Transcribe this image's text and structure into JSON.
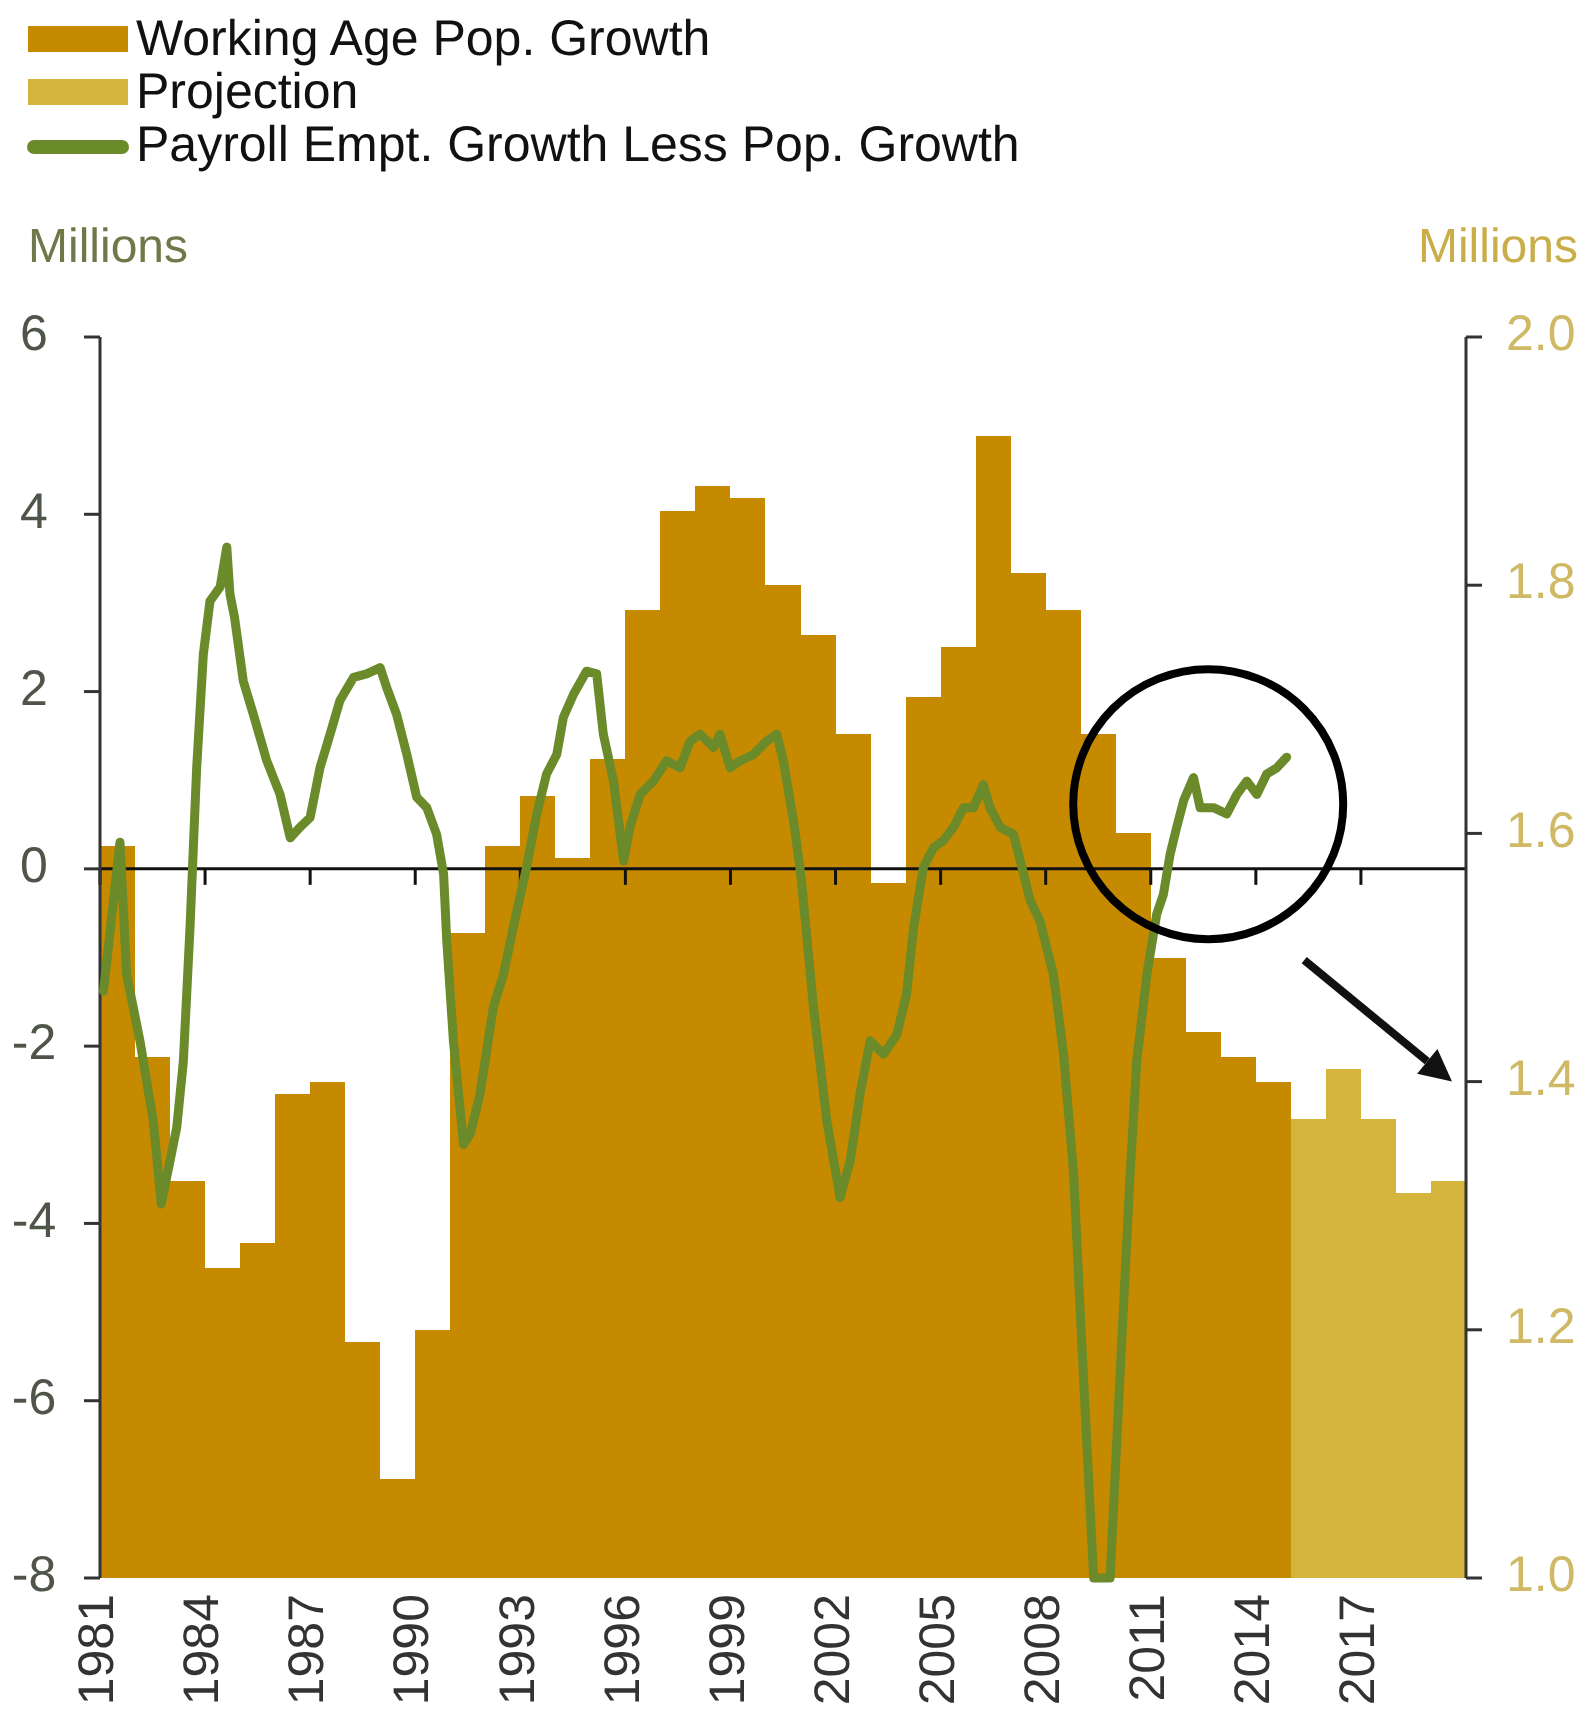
{
  "chart_data": {
    "type": "bar",
    "ylabel": "Millions",
    "y2label": "Millions",
    "legend": "top left",
    "xlim": [
      1981,
      2020
    ],
    "xticks": [
      1981,
      1984,
      1987,
      1990,
      1993,
      1996,
      1999,
      2002,
      2005,
      2008,
      2011,
      2014,
      2017
    ],
    "ylim": [
      -8,
      6
    ],
    "yticks": [
      -8,
      -6,
      -4,
      -2,
      0,
      2,
      4,
      6
    ],
    "y2lim": [
      1,
      2
    ],
    "y2ticks": [
      {
        "value": 1,
        "label": "1.0"
      },
      1.2,
      1.4,
      1.6,
      1.8,
      {
        "value": 2,
        "label": "2.0"
      }
    ],
    "series": [
      {
        "name": "Working Age Pop. Growth",
        "axis": "y2",
        "color": "#c68a00",
        "x": [
          1981.5,
          1982.5,
          1983.5,
          1984.5,
          1985.5,
          1986.5,
          1987.5,
          1988.5,
          1989.5,
          1990.5,
          1991.5,
          1992.5,
          1993.5,
          1994.5,
          1995.5,
          1996.5,
          1997.5,
          1998.5,
          1999.5,
          2000.5,
          2001.5,
          2002.5,
          2003.5,
          2004.5,
          2005.5,
          2006.5,
          2007.5,
          2008.5,
          2009.5,
          2010.5,
          2011.5,
          2012.5,
          2013.5,
          2014.5
        ],
        "values": [
          1.59,
          1.42,
          1.32,
          1.25,
          1.27,
          1.39,
          1.4,
          1.19,
          1.08,
          1.2,
          1.52,
          1.59,
          1.63,
          1.58,
          1.66,
          1.78,
          1.86,
          1.88,
          1.87,
          1.8,
          1.76,
          1.68,
          1.56,
          1.71,
          1.75,
          1.92,
          1.81,
          1.78,
          1.68,
          1.6,
          1.5,
          1.44,
          1.42,
          1.4
        ]
      },
      {
        "name": "Projection",
        "axis": "y2",
        "color": "#d4b43c",
        "x": [
          2015.5,
          2016.5,
          2017.5,
          2018.5,
          2019.5
        ],
        "values": [
          1.37,
          1.41,
          1.37,
          1.31,
          1.32
        ]
      },
      {
        "name": "Payroll Empt. Growth Less Pop. Growth",
        "type": "line",
        "axis": "y",
        "color": "#6b8a2a",
        "x": [
          1981.1,
          1981.57,
          1981.76,
          1982.14,
          1982.52,
          1982.75,
          1983.0,
          1983.19,
          1983.38,
          1983.57,
          1983.76,
          1983.95,
          1984.14,
          1984.43,
          1984.62,
          1984.71,
          1984.84,
          1985.09,
          1985.38,
          1985.76,
          1986.14,
          1986.43,
          1986.71,
          1987.0,
          1987.28,
          1987.57,
          1987.85,
          1988.24,
          1988.61,
          1989.0,
          1989.18,
          1989.47,
          1989.76,
          1990.04,
          1990.33,
          1990.61,
          1990.81,
          1990.9,
          1991.09,
          1991.38,
          1991.57,
          1991.85,
          1992.23,
          1992.52,
          1992.8,
          1993.18,
          1993.47,
          1993.75,
          1994.04,
          1994.23,
          1994.52,
          1994.89,
          1995.18,
          1995.37,
          1995.66,
          1995.95,
          1996.13,
          1996.42,
          1996.8,
          1997.18,
          1997.56,
          1997.85,
          1998.13,
          1998.52,
          1998.7,
          1998.99,
          1999.28,
          1999.66,
          2000.03,
          2000.32,
          2000.51,
          2000.8,
          2001.02,
          2001.37,
          2001.75,
          2002.13,
          2002.42,
          2002.7,
          2002.99,
          2003.37,
          2003.75,
          2004.03,
          2004.23,
          2004.51,
          2004.8,
          2005.08,
          2005.37,
          2005.65,
          2005.94,
          2006.22,
          2006.41,
          2006.7,
          2007.08,
          2007.37,
          2007.56,
          2007.84,
          2008.22,
          2008.51,
          2008.8,
          2008.98,
          2009.17,
          2009.37,
          2009.84,
          2010.03,
          2010.22,
          2010.41,
          2010.6,
          2010.89,
          2011.17,
          2011.36,
          2011.55,
          2011.74,
          2011.94,
          2012.22,
          2012.41,
          2012.79,
          2013.17,
          2013.46,
          2013.74,
          2014.03,
          2014.31,
          2014.6,
          2014.88
        ],
        "values": [
          -1.38,
          0.3,
          -1.19,
          -1.94,
          -2.84,
          -3.78,
          -3.29,
          -2.92,
          -2.17,
          -0.66,
          1.14,
          2.42,
          3.02,
          3.18,
          3.63,
          3.1,
          2.84,
          2.12,
          1.74,
          1.22,
          0.84,
          0.35,
          0.47,
          0.58,
          1.14,
          1.52,
          1.9,
          2.16,
          2.2,
          2.27,
          2.05,
          1.74,
          1.29,
          0.81,
          0.69,
          0.39,
          -0.06,
          -0.81,
          -1.94,
          -3.11,
          -2.99,
          -2.54,
          -1.56,
          -1.19,
          -0.66,
          0.02,
          0.62,
          1.07,
          1.29,
          1.71,
          1.97,
          2.23,
          2.2,
          1.52,
          0.99,
          0.09,
          0.47,
          0.84,
          0.99,
          1.22,
          1.14,
          1.44,
          1.52,
          1.37,
          1.52,
          1.14,
          1.22,
          1.29,
          1.44,
          1.52,
          1.22,
          0.54,
          -0.1,
          -1.56,
          -2.84,
          -3.71,
          -3.29,
          -2.54,
          -1.94,
          -2.09,
          -1.87,
          -1.41,
          -0.66,
          0.02,
          0.24,
          0.32,
          0.47,
          0.69,
          0.69,
          0.95,
          0.69,
          0.47,
          0.39,
          -0.06,
          -0.36,
          -0.59,
          -1.19,
          -2.09,
          -3.45,
          -4.95,
          -6.45,
          -8,
          -8,
          -6.45,
          -4.95,
          -3.45,
          -2.17,
          -1.19,
          -0.51,
          -0.29,
          0.16,
          0.47,
          0.77,
          1.03,
          0.69,
          0.69,
          0.62,
          0.84,
          0.99,
          0.84,
          1.07,
          1.14,
          1.26
        ]
      }
    ]
  }
}
